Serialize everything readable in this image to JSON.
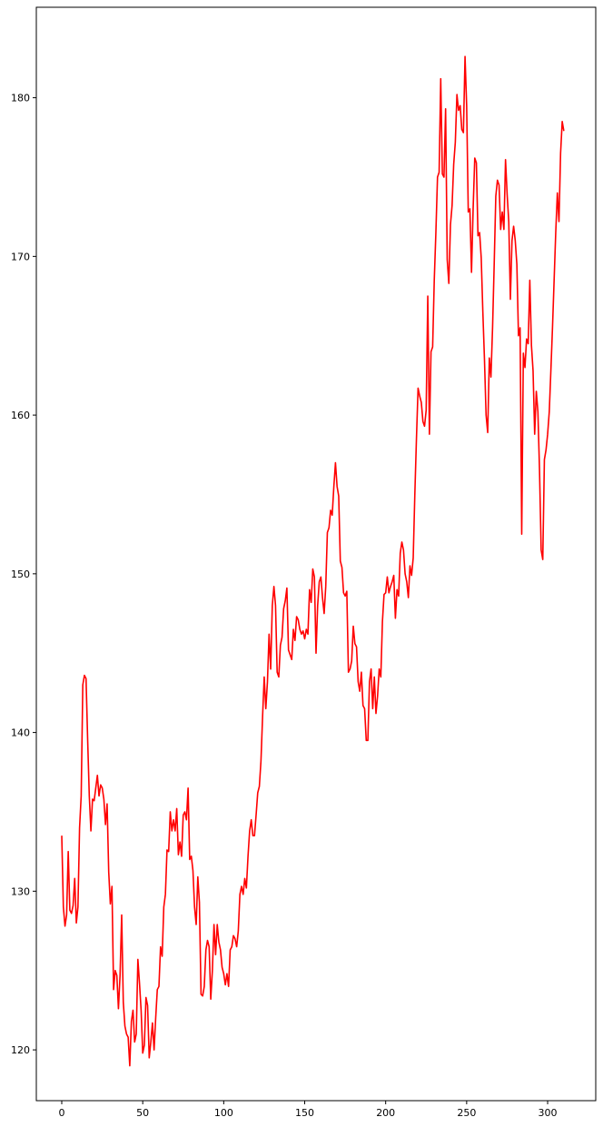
{
  "chart_data": {
    "type": "line",
    "title": "",
    "xlabel": "",
    "ylabel": "",
    "xlim": [
      -15.7,
      329.7
    ],
    "ylim": [
      116.8,
      185.7
    ],
    "grid": false,
    "x_ticks": [
      0,
      50,
      100,
      150,
      200,
      250,
      300
    ],
    "y_ticks": [
      120,
      130,
      140,
      150,
      160,
      170,
      180
    ],
    "x_tick_labels": [
      "0",
      "50",
      "100",
      "150",
      "200",
      "250",
      "300"
    ],
    "y_tick_labels": [
      "120",
      "130",
      "140",
      "150",
      "160",
      "170",
      "180"
    ],
    "series": [
      {
        "color": "#ff0000",
        "x_start": 0,
        "x_step": 1,
        "values": [
          133.5,
          129.0,
          127.8,
          128.5,
          132.5,
          128.8,
          128.6,
          129.1,
          130.8,
          128.0,
          129.0,
          134.0,
          136.0,
          143.0,
          143.6,
          143.4,
          139.5,
          136.0,
          133.8,
          135.8,
          135.7,
          136.5,
          137.3,
          136.0,
          136.7,
          136.5,
          135.8,
          134.2,
          135.5,
          131.2,
          129.2,
          130.3,
          123.8,
          125.0,
          124.7,
          122.6,
          124.7,
          128.5,
          123.0,
          121.5,
          121.0,
          120.8,
          119.0,
          121.8,
          122.5,
          120.5,
          121.0,
          125.7,
          124.2,
          122.5,
          119.8,
          120.3,
          123.3,
          122.8,
          119.5,
          120.5,
          121.7,
          120.0,
          122.0,
          123.8,
          124.0,
          126.5,
          125.9,
          129.0,
          129.8,
          132.6,
          132.5,
          135.0,
          133.8,
          134.5,
          133.8,
          135.2,
          132.3,
          133.1,
          132.2,
          134.8,
          135.0,
          134.5,
          136.5,
          132.0,
          132.2,
          131.3,
          129.0,
          127.9,
          130.9,
          129.3,
          123.5,
          123.4,
          124.0,
          126.3,
          126.9,
          126.5,
          123.2,
          125.0,
          127.9,
          126.0,
          127.9,
          126.8,
          126.3,
          125.2,
          124.8,
          124.1,
          124.8,
          124.0,
          126.3,
          126.5,
          127.2,
          127.0,
          126.5,
          127.5,
          129.8,
          130.3,
          129.8,
          130.8,
          130.2,
          132.2,
          133.8,
          134.5,
          133.5,
          133.5,
          134.8,
          136.2,
          136.6,
          138.2,
          141.0,
          143.5,
          141.5,
          143.2,
          146.2,
          144.0,
          148.0,
          149.2,
          148.0,
          143.8,
          143.5,
          145.5,
          146.0,
          147.8,
          148.3,
          149.1,
          145.2,
          144.9,
          144.6,
          146.5,
          145.8,
          147.3,
          147.1,
          146.5,
          146.2,
          146.4,
          145.9,
          146.5,
          146.2,
          149.0,
          148.2,
          150.3,
          149.8,
          145.0,
          148.0,
          149.5,
          149.8,
          148.5,
          147.5,
          149.2,
          152.6,
          152.9,
          154.0,
          153.7,
          155.5,
          157.0,
          155.5,
          154.9,
          150.8,
          150.4,
          148.8,
          148.6,
          148.9,
          143.8,
          144.0,
          144.5,
          146.7,
          145.6,
          145.4,
          143.2,
          142.6,
          143.8,
          141.7,
          141.5,
          139.5,
          139.5,
          143.2,
          144.0,
          141.5,
          143.5,
          141.2,
          142.3,
          144.0,
          143.5,
          147.0,
          148.7,
          148.8,
          149.8,
          148.8,
          149.2,
          149.5,
          149.9,
          147.2,
          149.0,
          148.6,
          151.3,
          152.0,
          151.5,
          150.0,
          149.5,
          148.5,
          150.5,
          149.9,
          151.0,
          155.0,
          158.5,
          161.7,
          161.2,
          160.8,
          159.6,
          159.3,
          160.3,
          167.5,
          158.8,
          164.0,
          164.3,
          168.5,
          171.5,
          175.0,
          175.3,
          181.2,
          175.2,
          175.0,
          179.3,
          169.8,
          168.3,
          172.0,
          173.2,
          175.8,
          177.2,
          180.2,
          179.2,
          179.5,
          178.0,
          177.8,
          182.6,
          179.5,
          172.8,
          173.0,
          169.0,
          173.0,
          176.2,
          175.9,
          171.3,
          171.5,
          169.9,
          166.5,
          163.5,
          160.0,
          158.9,
          163.6,
          162.4,
          165.5,
          169.5,
          173.8,
          174.8,
          174.5,
          171.7,
          172.8,
          171.7,
          176.1,
          173.9,
          172.2,
          167.3,
          171.0,
          171.9,
          171.0,
          169.5,
          165.0,
          165.5,
          152.5,
          163.9,
          163.0,
          164.8,
          164.5,
          168.5,
          164.4,
          162.8,
          158.8,
          161.5,
          160.2,
          156.5,
          151.5,
          150.9,
          157.2,
          157.8,
          158.8,
          160.2,
          162.8,
          165.5,
          168.5,
          171.5,
          174.0,
          172.2,
          176.5,
          178.5,
          177.9
        ]
      }
    ]
  }
}
